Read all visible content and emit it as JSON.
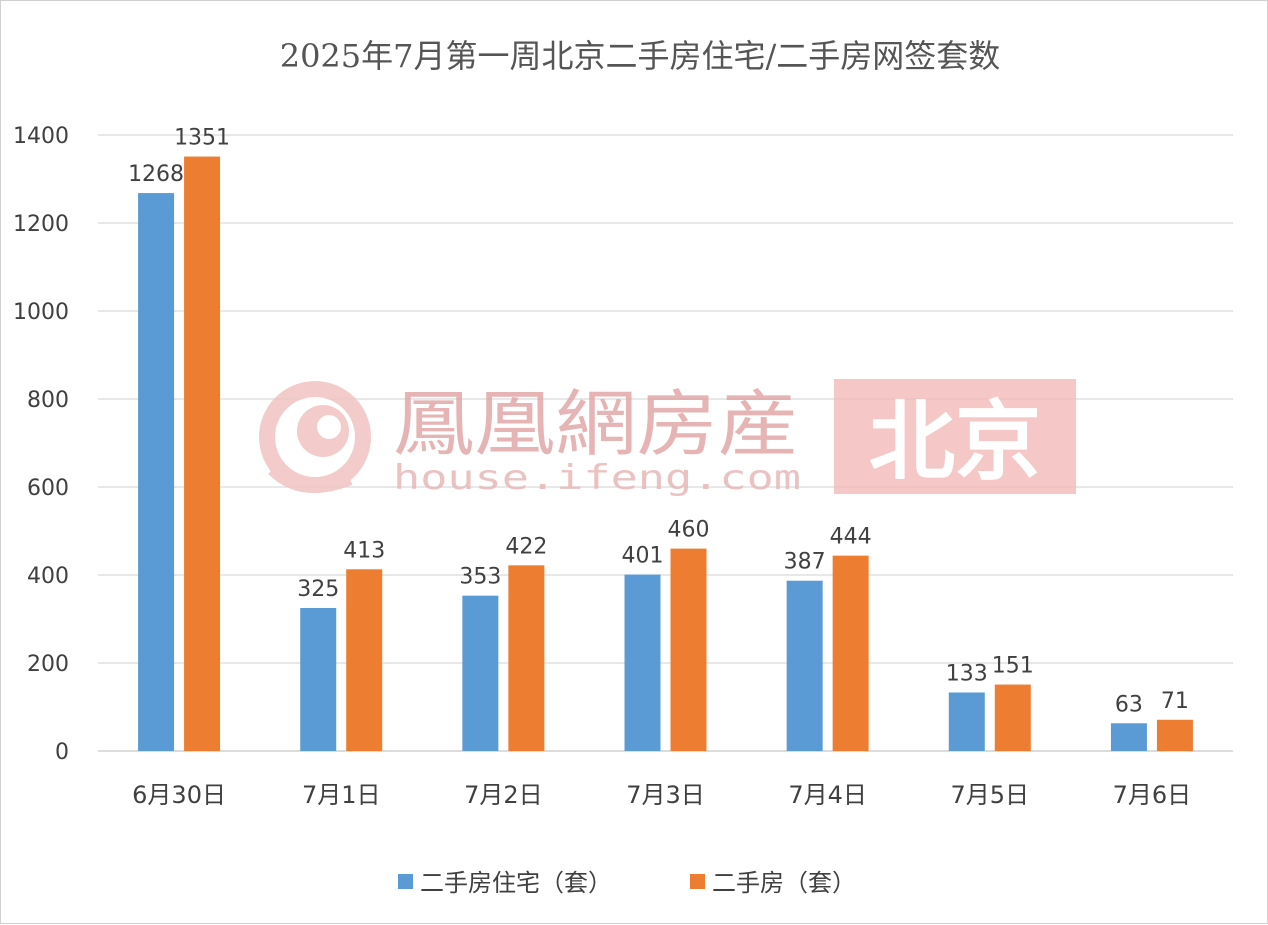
{
  "chart_data": {
    "type": "bar",
    "title": "2025年7月第一周北京二手房住宅/二手房网签套数",
    "categories": [
      "6月30日",
      "7月1日",
      "7月2日",
      "7月3日",
      "7月4日",
      "7月5日",
      "7月6日"
    ],
    "series": [
      {
        "name": "二手房住宅（套）",
        "color": "#5b9bd5",
        "values": [
          1268,
          325,
          353,
          401,
          387,
          133,
          63
        ]
      },
      {
        "name": "二手房（套）",
        "color": "#ed7d31",
        "values": [
          1351,
          413,
          422,
          460,
          444,
          151,
          71
        ]
      }
    ],
    "ylim": [
      0,
      1400
    ],
    "yticks": [
      0,
      200,
      400,
      600,
      800,
      1000,
      1200,
      1400
    ],
    "grid": true,
    "legend_position": "bottom",
    "xlabel": "",
    "ylabel": ""
  },
  "watermark": {
    "logo": "鳳凰網房産",
    "url": "house.ifeng.com",
    "city": "北京"
  }
}
